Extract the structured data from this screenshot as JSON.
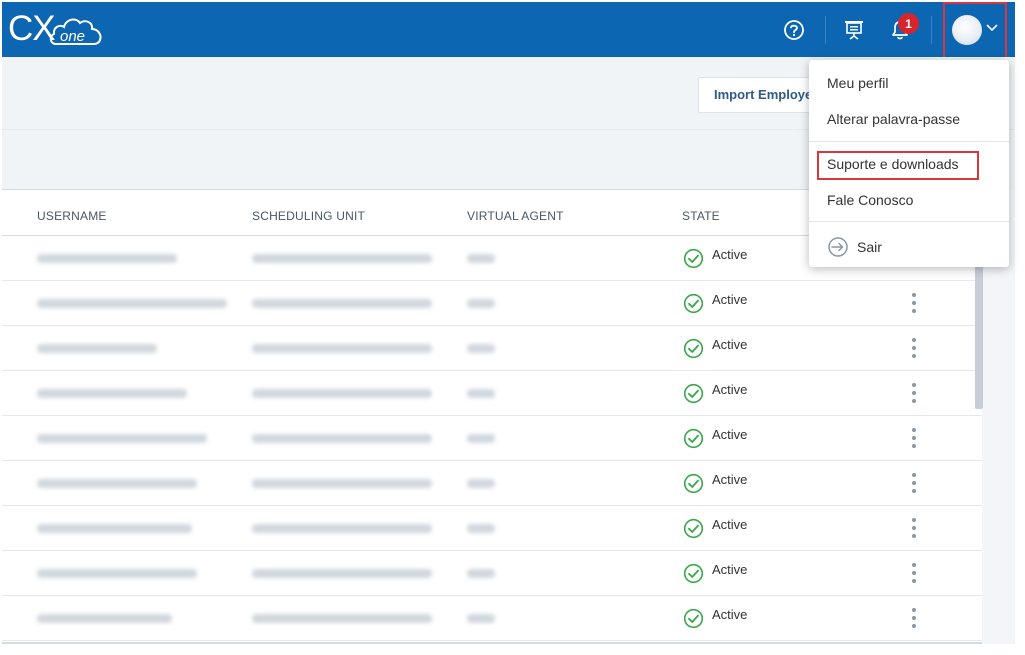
{
  "brand": {
    "logo_cx": "CX",
    "logo_one": "one"
  },
  "header": {
    "notifications_count": "1"
  },
  "toolbar": {
    "import_label": "Import Employees"
  },
  "table": {
    "columns": [
      "USERNAME",
      "SCHEDULING UNIT",
      "VIRTUAL AGENT",
      "STATE"
    ],
    "rows": [
      {
        "state": "Active"
      },
      {
        "state": "Active"
      },
      {
        "state": "Active"
      },
      {
        "state": "Active"
      },
      {
        "state": "Active"
      },
      {
        "state": "Active"
      },
      {
        "state": "Active"
      },
      {
        "state": "Active"
      },
      {
        "state": "Active"
      }
    ]
  },
  "user_menu": {
    "items": [
      "Meu perfil",
      "Alterar palavra-passe",
      "Suporte e downloads",
      "Fale Conosco",
      "Sair"
    ]
  },
  "colors": {
    "topbar": "#0d66b1",
    "active_green": "#3aa74a",
    "badge_red": "#d6252c",
    "highlight_red": "#d9363e"
  },
  "icons": [
    "help-icon",
    "presentation-icon",
    "bell-icon",
    "chevron-down-icon",
    "check-circle-icon",
    "kebab-icon",
    "logout-icon"
  ]
}
